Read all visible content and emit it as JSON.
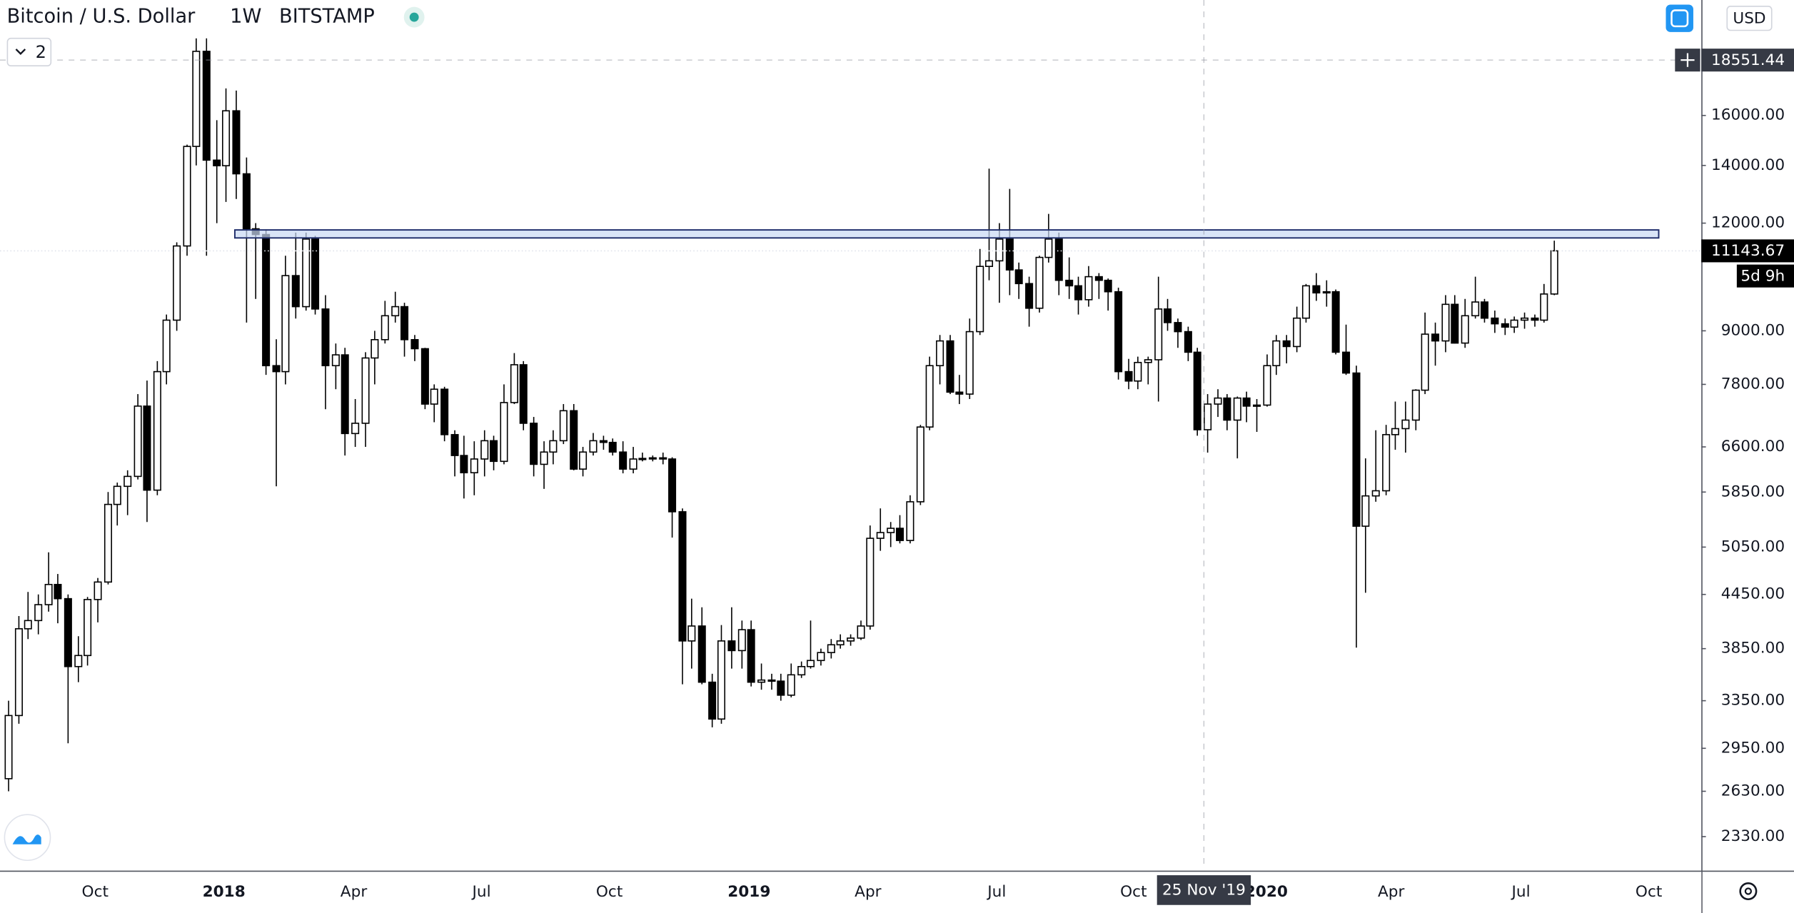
{
  "chart_data": {
    "type": "candlestick",
    "title": "Bitcoin / U.S. Dollar",
    "interval": "1W",
    "exchange": "BITSTAMP",
    "currency": "USD",
    "indicator_count": 2,
    "countdown": "5d 9h",
    "log_scale": true,
    "up_color": "#ffffff",
    "down_color": "#000000",
    "wick_color": "#000000",
    "ylim": [
      2134,
      21780
    ],
    "yticks": [
      {
        "value": 2330,
        "label": "2330.00"
      },
      {
        "value": 2630,
        "label": "2630.00"
      },
      {
        "value": 2950,
        "label": "2950.00"
      },
      {
        "value": 3350,
        "label": "3350.00"
      },
      {
        "value": 3850,
        "label": "3850.00"
      },
      {
        "value": 4450,
        "label": "4450.00"
      },
      {
        "value": 5050,
        "label": "5050.00"
      },
      {
        "value": 5850,
        "label": "5850.00"
      },
      {
        "value": 6600,
        "label": "6600.00"
      },
      {
        "value": 7800,
        "label": "7800.00"
      },
      {
        "value": 9000,
        "label": "9000.00"
      },
      {
        "value": 12000,
        "label": "12000.00"
      },
      {
        "value": 14000,
        "label": "14000.00"
      },
      {
        "value": 16000,
        "label": "16000.00"
      }
    ],
    "xlim": [
      -0.8,
      170.9
    ],
    "xticks": [
      {
        "value": 8.8,
        "label": "Oct"
      },
      {
        "value": 21.8,
        "label": "2018"
      },
      {
        "value": 34.9,
        "label": "Apr"
      },
      {
        "value": 47.8,
        "label": "Jul"
      },
      {
        "value": 60.7,
        "label": "Oct"
      },
      {
        "value": 74.8,
        "label": "2019"
      },
      {
        "value": 86.8,
        "label": "Apr"
      },
      {
        "value": 99.8,
        "label": "Jul"
      },
      {
        "value": 113.6,
        "label": "Oct"
      },
      {
        "value": 127.0,
        "label": "2020"
      },
      {
        "value": 139.6,
        "label": "Apr"
      },
      {
        "value": 152.7,
        "label": "Jul"
      },
      {
        "value": 165.6,
        "label": "Oct"
      }
    ],
    "open": [
      2720,
      3220,
      4060,
      4150,
      4330,
      4570,
      4400,
      3670,
      3780,
      4390,
      4600,
      5660,
      5940,
      6100,
      7360,
      5880,
      8070,
      9260,
      11290,
      14730,
      18990,
      14200,
      13990,
      16200,
      13690,
      11820,
      11640,
      8200,
      8070,
      10430,
      9600,
      11500,
      9540,
      8200,
      8440,
      6840,
      7030,
      8370,
      8790,
      9370,
      9600,
      8790,
      8580,
      7400,
      7700,
      6820,
      6450,
      6160,
      6390,
      6710,
      6350,
      7430,
      8220,
      7030,
      6300,
      6510,
      6710,
      7270,
      6220,
      6510,
      6710,
      6680,
      6510,
      6220,
      6390,
      6400,
      6410,
      6390,
      5550,
      3930,
      4090,
      3520,
      3190,
      3930,
      3830,
      4050,
      3520,
      3540,
      3530,
      3400,
      3590,
      3670,
      3730,
      3810,
      3890,
      3930,
      3960,
      4090,
      5170,
      5250,
      5310,
      5140,
      5700,
      6960,
      8200,
      8760,
      7640,
      7600,
      8980,
      10690,
      10850,
      11500,
      10590,
      10210,
      9560,
      10950,
      11500,
      10300,
      10150,
      9780,
      10400,
      10300,
      9990,
      8070,
      7870,
      8270,
      8330,
      9540,
      9200,
      8980,
      8500,
      6910,
      7400,
      7520,
      7090,
      7520,
      7360,
      7380,
      8200,
      8760,
      8630,
      9310,
      10150,
      9960,
      9990,
      8500,
      8040,
      5340,
      5790,
      5870,
      6820,
      6930,
      7090,
      7680,
      8920,
      8760,
      9660,
      8710,
      9370,
      9720,
      9310,
      9170,
      9090,
      9260,
      9310,
      9260,
      9930
    ],
    "high": [
      3350,
      4200,
      4480,
      4450,
      4980,
      4700,
      4450,
      3980,
      4420,
      4650,
      5850,
      6000,
      6200,
      7600,
      7880,
      8300,
      9400,
      11400,
      14800,
      19660,
      19660,
      15800,
      17200,
      17100,
      14300,
      12000,
      11800,
      8800,
      11000,
      11700,
      11700,
      11600,
      9900,
      8700,
      8600,
      7500,
      8500,
      9000,
      9750,
      9990,
      9700,
      8900,
      8600,
      7800,
      7750,
      6900,
      6800,
      6700,
      6900,
      6800,
      7800,
      8480,
      8300,
      7150,
      6700,
      6900,
      7400,
      7400,
      6600,
      6850,
      6800,
      6750,
      6700,
      6600,
      6500,
      6450,
      6500,
      6420,
      5600,
      4400,
      4300,
      3600,
      4100,
      4300,
      4150,
      4150,
      3700,
      3600,
      3600,
      3700,
      3720,
      4150,
      3850,
      3950,
      4000,
      4000,
      4150,
      5350,
      5600,
      5400,
      5500,
      5800,
      7000,
      8400,
      8900,
      8900,
      8000,
      9300,
      11200,
      13880,
      12000,
      13150,
      10800,
      10400,
      11000,
      12300,
      11700,
      10950,
      10400,
      10700,
      10500,
      10350,
      10100,
      8350,
      8400,
      8400,
      10400,
      9800,
      9300,
      9100,
      8600,
      7600,
      7700,
      7600,
      7550,
      7650,
      7500,
      8450,
      8900,
      8900,
      9600,
      10200,
      10500,
      10300,
      10050,
      9150,
      8200,
      6400,
      6900,
      7000,
      7450,
      7450,
      7700,
      9450,
      9200,
      9900,
      9900,
      9800,
      10400,
      9800,
      9500,
      9300,
      9350,
      9450,
      9400,
      10200,
      11450
    ],
    "low": [
      2630,
      3150,
      3950,
      4000,
      4250,
      4120,
      2990,
      3520,
      3680,
      4130,
      4570,
      5350,
      5500,
      6050,
      5400,
      5800,
      7800,
      9000,
      11000,
      14000,
      11000,
      12000,
      12700,
      12800,
      9200,
      9800,
      8000,
      5940,
      7800,
      9300,
      9500,
      9400,
      7300,
      7700,
      6450,
      6600,
      6600,
      7800,
      8700,
      9200,
      8400,
      8300,
      7300,
      7050,
      6700,
      6100,
      5750,
      5800,
      6100,
      6200,
      6300,
      7400,
      6900,
      6100,
      5900,
      6300,
      6650,
      6200,
      6100,
      6450,
      6550,
      6450,
      6150,
      6150,
      6350,
      6350,
      6300,
      5180,
      3500,
      3650,
      3500,
      3120,
      3150,
      3650,
      3650,
      3480,
      3450,
      3450,
      3350,
      3380,
      3560,
      3650,
      3680,
      3750,
      3850,
      3880,
      3940,
      4050,
      5000,
      5050,
      5100,
      5100,
      5650,
      6900,
      7800,
      7600,
      7400,
      7500,
      8900,
      10300,
      9700,
      9900,
      9800,
      9100,
      9450,
      10800,
      9900,
      9800,
      9400,
      9600,
      9800,
      9500,
      7900,
      7700,
      7700,
      7800,
      7450,
      9000,
      8600,
      8300,
      6800,
      6500,
      7150,
      6900,
      6400,
      7050,
      6870,
      7350,
      8000,
      8250,
      8500,
      9200,
      9750,
      9600,
      8450,
      8000,
      3860,
      4470,
      5700,
      5800,
      6550,
      6500,
      6900,
      7600,
      8200,
      8500,
      8700,
      8600,
      9300,
      9200,
      8950,
      8900,
      8950,
      9050,
      9100,
      9200,
      9900
    ],
    "close": [
      3220,
      4060,
      4150,
      4330,
      4570,
      4400,
      3670,
      3780,
      4390,
      4600,
      5660,
      5940,
      6100,
      7360,
      5880,
      8070,
      9260,
      11290,
      14730,
      18990,
      14200,
      13990,
      16200,
      13690,
      11820,
      11640,
      8200,
      8070,
      10430,
      9600,
      11500,
      9540,
      8200,
      8440,
      6840,
      7030,
      8370,
      8790,
      9370,
      9600,
      8790,
      8580,
      7400,
      7700,
      6820,
      6450,
      6160,
      6390,
      6710,
      6350,
      7430,
      8220,
      7030,
      6300,
      6510,
      6710,
      7270,
      6220,
      6510,
      6710,
      6680,
      6510,
      6220,
      6390,
      6400,
      6410,
      6390,
      5550,
      3930,
      4090,
      3520,
      3190,
      3930,
      3830,
      4050,
      3520,
      3540,
      3530,
      3400,
      3590,
      3670,
      3730,
      3810,
      3890,
      3930,
      3960,
      4090,
      5170,
      5250,
      5310,
      5140,
      5700,
      6960,
      8200,
      8760,
      7640,
      7600,
      8980,
      10690,
      10850,
      11500,
      10590,
      10210,
      9560,
      10950,
      11500,
      10300,
      10150,
      9780,
      10400,
      10300,
      9990,
      8070,
      7870,
      8270,
      8330,
      9540,
      9200,
      8980,
      8500,
      6910,
      7400,
      7520,
      7090,
      7520,
      7360,
      7380,
      8200,
      8760,
      8630,
      9310,
      10150,
      9960,
      9990,
      8500,
      8040,
      5340,
      5790,
      5870,
      6820,
      6930,
      7090,
      7680,
      8920,
      8760,
      9660,
      8710,
      9370,
      9720,
      9310,
      9170,
      9090,
      9260,
      9310,
      9260,
      9930,
      11143.67
    ],
    "zone": {
      "x": [
        22.9,
        166.6
      ],
      "y": [
        11535,
        11784
      ]
    },
    "crosshair": {
      "x": 120.7,
      "x_label": "25 Nov '19",
      "price": 18551.44
    }
  }
}
